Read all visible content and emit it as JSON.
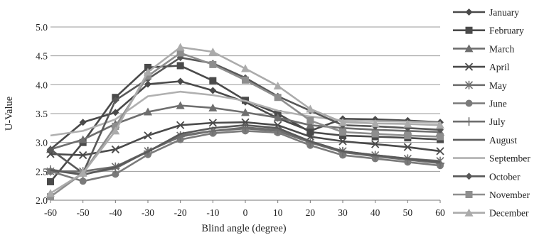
{
  "chart_data": {
    "type": "line",
    "xlabel": "Blind angle (degree)",
    "ylabel": "U-Value",
    "x": [
      -60,
      -50,
      -40,
      -30,
      -20,
      -10,
      0,
      10,
      20,
      30,
      40,
      50,
      60
    ],
    "xlim": [
      -60,
      60
    ],
    "ylim": [
      2.0,
      5.0
    ],
    "yticks": [
      "2.0",
      "2.5",
      "3.0",
      "3.5",
      "4.0",
      "4.5",
      "5.0"
    ],
    "xticks": [
      "-60",
      "-50",
      "-40",
      "-30",
      "-20",
      "-10",
      "0",
      "10",
      "20",
      "30",
      "40",
      "50",
      "60"
    ],
    "grid": "horizontal",
    "legend_position": "right",
    "series": [
      {
        "name": "January",
        "marker": "diamond",
        "color": "#4a4a4a",
        "values": [
          2.88,
          3.35,
          3.52,
          4.01,
          4.06,
          3.9,
          3.7,
          3.42,
          3.2,
          3.41,
          3.4,
          3.38,
          3.35
        ]
      },
      {
        "name": "February",
        "marker": "square",
        "color": "#4a4a4a",
        "values": [
          2.32,
          3.0,
          3.78,
          4.3,
          4.33,
          4.07,
          3.73,
          3.5,
          3.18,
          3.12,
          3.1,
          3.08,
          3.05
        ]
      },
      {
        "name": "March",
        "marker": "triangle",
        "color": "#6e6e6e",
        "values": [
          2.88,
          3.05,
          3.32,
          3.53,
          3.64,
          3.6,
          3.52,
          3.43,
          3.3,
          3.25,
          3.22,
          3.2,
          3.18
        ]
      },
      {
        "name": "April",
        "marker": "x",
        "color": "#4a4a4a",
        "values": [
          2.8,
          2.78,
          2.88,
          3.12,
          3.3,
          3.34,
          3.35,
          3.3,
          3.1,
          3.02,
          2.97,
          2.92,
          2.85
        ]
      },
      {
        "name": "May",
        "marker": "star",
        "color": "#6e6e6e",
        "values": [
          2.5,
          2.5,
          2.58,
          2.85,
          3.12,
          3.2,
          3.24,
          3.2,
          3.0,
          2.85,
          2.78,
          2.72,
          2.68
        ]
      },
      {
        "name": "June",
        "marker": "circle",
        "color": "#7a7a7a",
        "values": [
          2.5,
          2.33,
          2.45,
          2.79,
          3.05,
          3.16,
          3.2,
          3.17,
          2.95,
          2.78,
          2.72,
          2.66,
          2.6
        ]
      },
      {
        "name": "July",
        "marker": "plus",
        "color": "#6e6e6e",
        "values": [
          2.53,
          2.45,
          2.55,
          2.85,
          3.1,
          3.2,
          3.26,
          3.22,
          3.0,
          2.83,
          2.76,
          2.7,
          2.64
        ]
      },
      {
        "name": "August",
        "marker": "none",
        "color": "#5a5a5a",
        "values": [
          2.52,
          2.44,
          2.57,
          2.84,
          3.15,
          3.25,
          3.3,
          3.25,
          3.02,
          2.85,
          2.78,
          2.72,
          2.66
        ]
      },
      {
        "name": "September",
        "marker": "none",
        "color": "#b0b0b0",
        "values": [
          3.12,
          3.2,
          3.4,
          3.8,
          3.88,
          3.82,
          3.72,
          3.55,
          3.45,
          3.38,
          3.37,
          3.36,
          3.34
        ]
      },
      {
        "name": "October",
        "marker": "diamond",
        "color": "#585858",
        "values": [
          2.88,
          2.47,
          3.73,
          4.1,
          4.47,
          4.37,
          4.12,
          3.8,
          3.55,
          3.3,
          3.28,
          3.25,
          3.22
        ]
      },
      {
        "name": "November",
        "marker": "square",
        "color": "#8e8e8e",
        "values": [
          2.06,
          2.47,
          3.28,
          4.15,
          4.55,
          4.35,
          4.08,
          3.78,
          3.38,
          3.18,
          3.15,
          3.12,
          3.1
        ]
      },
      {
        "name": "December",
        "marker": "triangle",
        "color": "#ababab",
        "values": [
          2.12,
          2.47,
          3.2,
          4.22,
          4.65,
          4.57,
          4.28,
          3.98,
          3.58,
          3.35,
          3.33,
          3.32,
          3.3
        ]
      }
    ]
  }
}
